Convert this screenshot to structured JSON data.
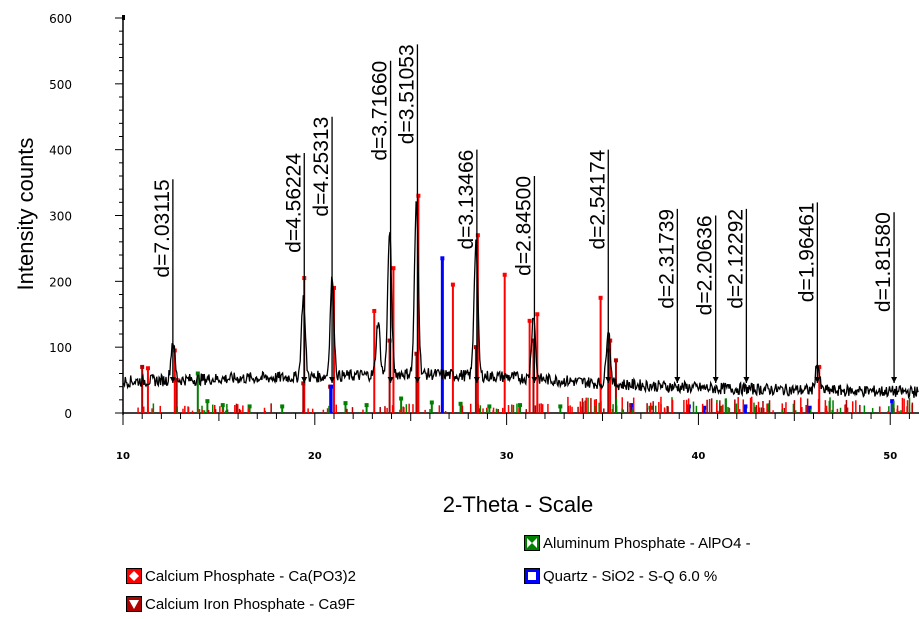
{
  "chart_data": {
    "type": "line",
    "xlabel": "2-Theta - Scale",
    "ylabel": "Intensity counts",
    "xlim": [
      10,
      51.5
    ],
    "ylim": [
      0,
      600
    ],
    "x_ticks": [
      10,
      20,
      30,
      40,
      50
    ],
    "x_tick_labels": [
      "10",
      "20",
      "30",
      "40",
      "50"
    ],
    "y_ticks": [
      0,
      100,
      200,
      300,
      400,
      500,
      600
    ],
    "y_tick_labels": [
      "0",
      "100",
      "200",
      "300",
      "400",
      "500",
      "600"
    ],
    "colors": {
      "pattern": "#000000",
      "calcium_phosphate": "#ff0000",
      "calcium_iron_phosphate": "#b00000",
      "aluminum_phosphate": "#008000",
      "quartz": "#0000ff"
    },
    "pattern_peaks": [
      {
        "x": 12.6,
        "y": 110
      },
      {
        "x": 19.4,
        "y": 175
      },
      {
        "x": 20.9,
        "y": 205
      },
      {
        "x": 23.3,
        "y": 140
      },
      {
        "x": 23.9,
        "y": 275
      },
      {
        "x": 25.3,
        "y": 320
      },
      {
        "x": 28.4,
        "y": 260
      },
      {
        "x": 31.4,
        "y": 150
      },
      {
        "x": 35.3,
        "y": 130
      },
      {
        "x": 46.2,
        "y": 75
      }
    ],
    "pattern_baseline": [
      {
        "x": 10,
        "y": 48
      },
      {
        "x": 15,
        "y": 52
      },
      {
        "x": 20,
        "y": 55
      },
      {
        "x": 25,
        "y": 60
      },
      {
        "x": 30,
        "y": 55
      },
      {
        "x": 35,
        "y": 45
      },
      {
        "x": 40,
        "y": 38
      },
      {
        "x": 45,
        "y": 35
      },
      {
        "x": 51.5,
        "y": 32
      }
    ],
    "d_spacing_markers": [
      {
        "x": 12.6,
        "top": 355,
        "label": "d=7.03115"
      },
      {
        "x": 19.45,
        "top": 395,
        "label": "d=4.56224"
      },
      {
        "x": 20.9,
        "top": 450,
        "label": "d=4.25313"
      },
      {
        "x": 23.95,
        "top": 535,
        "label": "d=3.71660"
      },
      {
        "x": 25.35,
        "top": 560,
        "label": "d=3.51053"
      },
      {
        "x": 28.45,
        "top": 400,
        "label": "d=3.13466"
      },
      {
        "x": 31.45,
        "top": 360,
        "label": "d=2.84500"
      },
      {
        "x": 35.3,
        "top": 400,
        "label": "d=2.54174"
      },
      {
        "x": 38.9,
        "top": 310,
        "label": "d=2.31739"
      },
      {
        "x": 40.9,
        "top": 300,
        "label": "d=2.20636"
      },
      {
        "x": 42.5,
        "top": 310,
        "label": "d=2.12292"
      },
      {
        "x": 46.2,
        "top": 320,
        "label": "d=1.96461"
      },
      {
        "x": 50.2,
        "top": 305,
        "label": "d=1.81580"
      }
    ],
    "reference_sticks": {
      "calcium_phosphate": [
        {
          "x": 11.3,
          "y": 68
        },
        {
          "x": 12.7,
          "y": 95
        },
        {
          "x": 19.45,
          "y": 205
        },
        {
          "x": 21.0,
          "y": 190
        },
        {
          "x": 23.1,
          "y": 155
        },
        {
          "x": 24.1,
          "y": 220
        },
        {
          "x": 25.4,
          "y": 330
        },
        {
          "x": 27.2,
          "y": 195
        },
        {
          "x": 28.5,
          "y": 270
        },
        {
          "x": 29.9,
          "y": 210
        },
        {
          "x": 31.2,
          "y": 140
        },
        {
          "x": 31.6,
          "y": 150
        },
        {
          "x": 34.9,
          "y": 175
        },
        {
          "x": 35.4,
          "y": 110
        },
        {
          "x": 46.3,
          "y": 70
        }
      ],
      "calcium_iron_phosphate": [
        {
          "x": 11.0,
          "y": 70
        },
        {
          "x": 12.8,
          "y": 50
        },
        {
          "x": 19.4,
          "y": 45
        },
        {
          "x": 20.8,
          "y": 40
        },
        {
          "x": 23.9,
          "y": 110
        },
        {
          "x": 25.3,
          "y": 90
        },
        {
          "x": 28.4,
          "y": 100
        },
        {
          "x": 31.4,
          "y": 110
        },
        {
          "x": 35.3,
          "y": 95
        },
        {
          "x": 35.7,
          "y": 80
        }
      ],
      "aluminum_phosphate": [
        {
          "x": 13.9,
          "y": 60
        },
        {
          "x": 14.4,
          "y": 18
        },
        {
          "x": 15.2,
          "y": 12
        },
        {
          "x": 16.6,
          "y": 10
        },
        {
          "x": 18.3,
          "y": 10
        },
        {
          "x": 21.6,
          "y": 15
        },
        {
          "x": 22.7,
          "y": 12
        },
        {
          "x": 24.5,
          "y": 22
        },
        {
          "x": 26.1,
          "y": 16
        },
        {
          "x": 27.6,
          "y": 14
        },
        {
          "x": 29.1,
          "y": 10
        },
        {
          "x": 30.7,
          "y": 12
        },
        {
          "x": 32.8,
          "y": 10
        },
        {
          "x": 37.5,
          "y": 8
        },
        {
          "x": 41.2,
          "y": 8
        }
      ],
      "quartz": [
        {
          "x": 20.85,
          "y": 40
        },
        {
          "x": 26.65,
          "y": 235
        },
        {
          "x": 36.5,
          "y": 12
        },
        {
          "x": 39.5,
          "y": 10
        },
        {
          "x": 40.3,
          "y": 8
        },
        {
          "x": 42.45,
          "y": 10
        },
        {
          "x": 45.8,
          "y": 8
        },
        {
          "x": 50.1,
          "y": 18
        }
      ]
    }
  },
  "legend": {
    "calcium_phosphate": "Calcium Phosphate - Ca(PO3)2",
    "calcium_iron_phosphate": "Calcium Iron Phosphate - Ca9F",
    "aluminum_phosphate": "Aluminum Phosphate  - AlPO4 -",
    "quartz": "Quartz - SiO2 - S-Q 6.0 %"
  }
}
